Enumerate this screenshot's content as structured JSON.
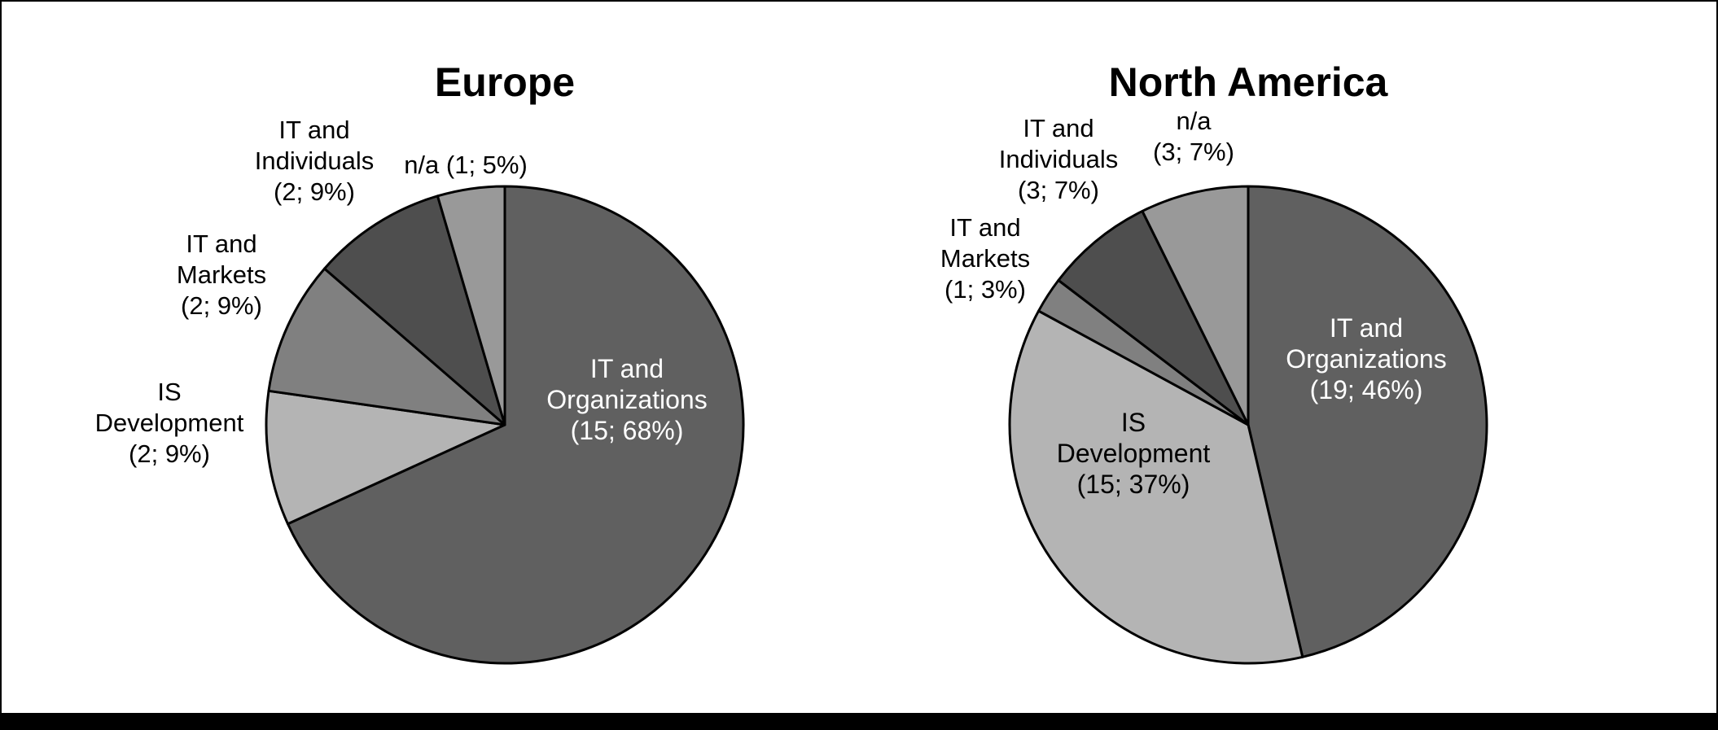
{
  "chart_data": [
    {
      "type": "pie",
      "title": "Europe",
      "slices": [
        {
          "label": [
            "IT and",
            "Organizations",
            "(15; 68%)"
          ],
          "value": 15,
          "percent": 68,
          "color": "#606060"
        },
        {
          "label": [
            "IS",
            "Development",
            "(2; 9%)"
          ],
          "value": 2,
          "percent": 9,
          "color": "#b4b4b4"
        },
        {
          "label": [
            "IT and",
            "Markets",
            "(2; 9%)"
          ],
          "value": 2,
          "percent": 9,
          "color": "#808080"
        },
        {
          "label": [
            "IT and",
            "Individuals",
            "(2; 9%)"
          ],
          "value": 2,
          "percent": 9,
          "color": "#4e4e4e"
        },
        {
          "label": [
            "n/a (1; 5%)"
          ],
          "value": 1,
          "percent": 5,
          "color": "#999999"
        }
      ]
    },
    {
      "type": "pie",
      "title": "North America",
      "slices": [
        {
          "label": [
            "IT and",
            "Organizations",
            "(19; 46%)"
          ],
          "value": 19,
          "percent": 46,
          "color": "#606060"
        },
        {
          "label": [
            "IS",
            "Development",
            "(15; 37%)"
          ],
          "value": 15,
          "percent": 37,
          "color": "#b4b4b4"
        },
        {
          "label": [
            "IT and",
            "Markets",
            "(1; 3%)"
          ],
          "value": 1,
          "percent": 3,
          "color": "#808080"
        },
        {
          "label": [
            "IT and",
            "Individuals",
            "(3; 7%)"
          ],
          "value": 3,
          "percent": 7,
          "color": "#4e4e4e"
        },
        {
          "label": [
            "n/a",
            "(3; 7%)"
          ],
          "value": 3,
          "percent": 7,
          "color": "#999999"
        }
      ]
    }
  ]
}
